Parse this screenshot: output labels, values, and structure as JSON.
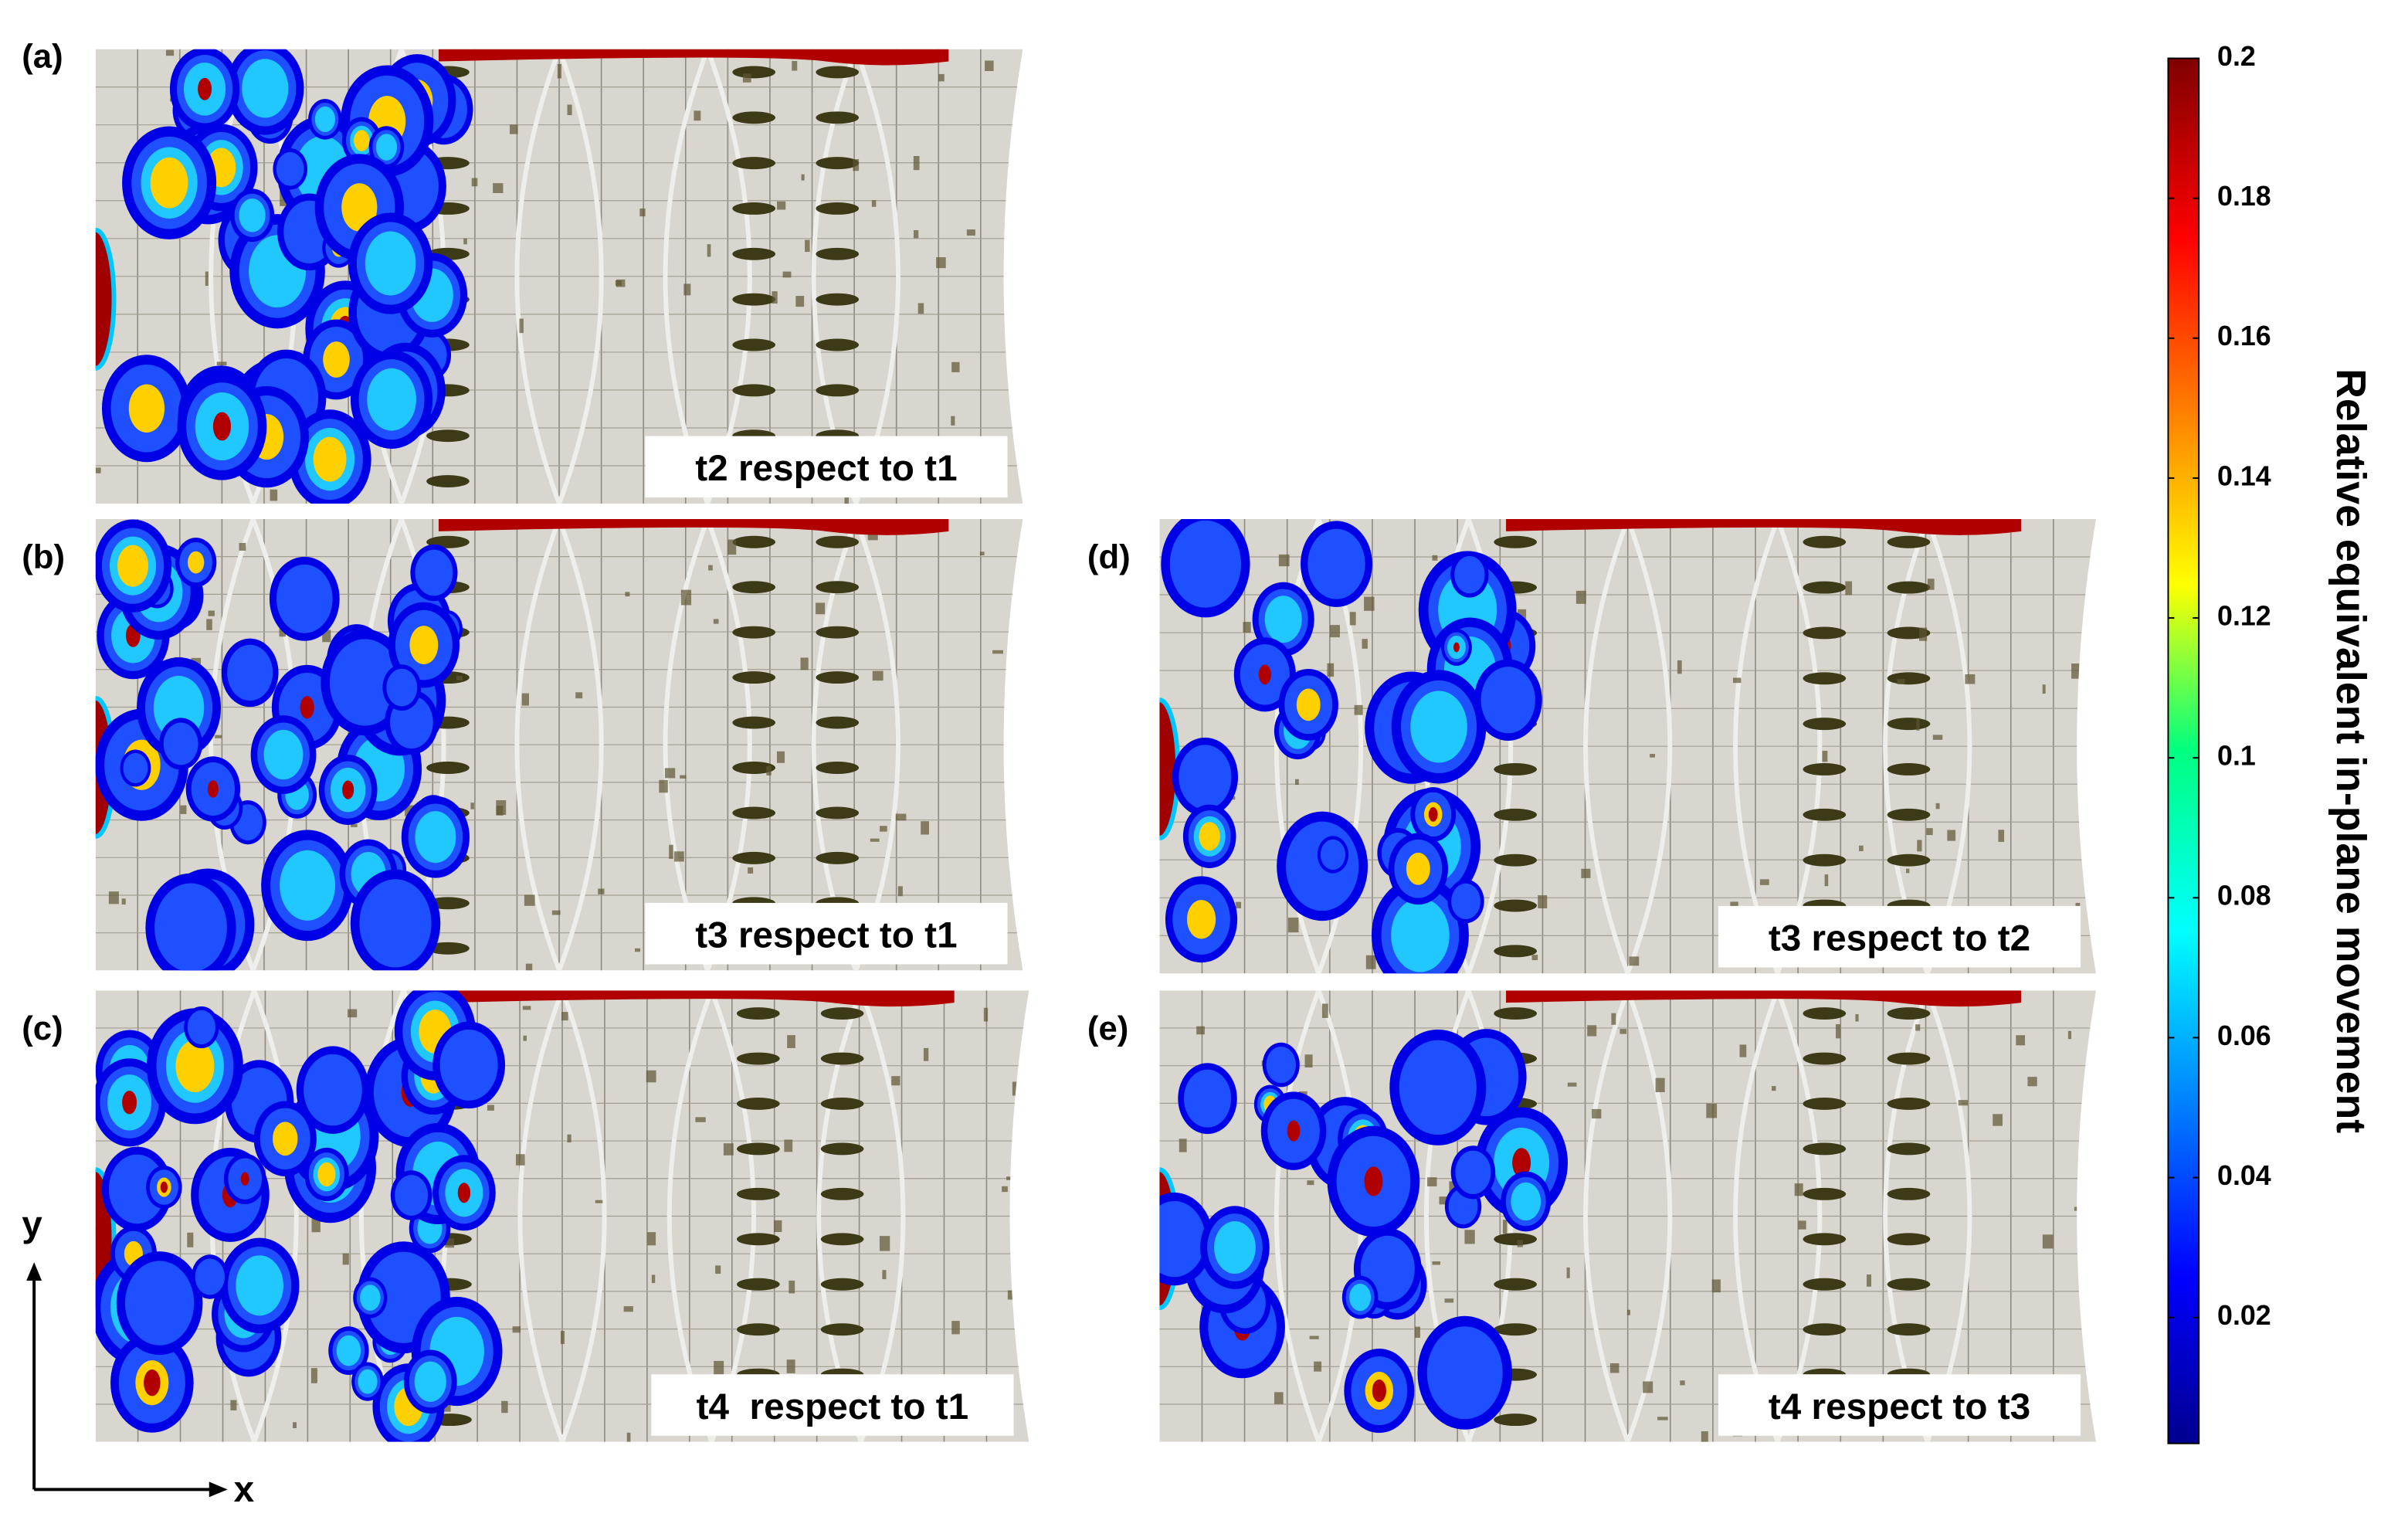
{
  "panels": [
    {
      "label": "(a)",
      "caption": "t2 respect to t1"
    },
    {
      "label": "(b)",
      "caption": "t3 respect to t1"
    },
    {
      "label": "(c)",
      "caption": "t4  respect to t1"
    },
    {
      "label": "(d)",
      "caption": "t3 respect to t2"
    },
    {
      "label": "(e)",
      "caption": "t4 respect to t3"
    }
  ],
  "colorbar": {
    "label": "Relative equivalent in-plane movement",
    "lim": [
      0.002,
      0.2
    ],
    "ticks": [
      0.02,
      0.04,
      0.06,
      0.08,
      0.1,
      0.12,
      0.14,
      0.16,
      0.18,
      0.2
    ]
  },
  "axes": {
    "x": "x",
    "y": "y"
  }
}
